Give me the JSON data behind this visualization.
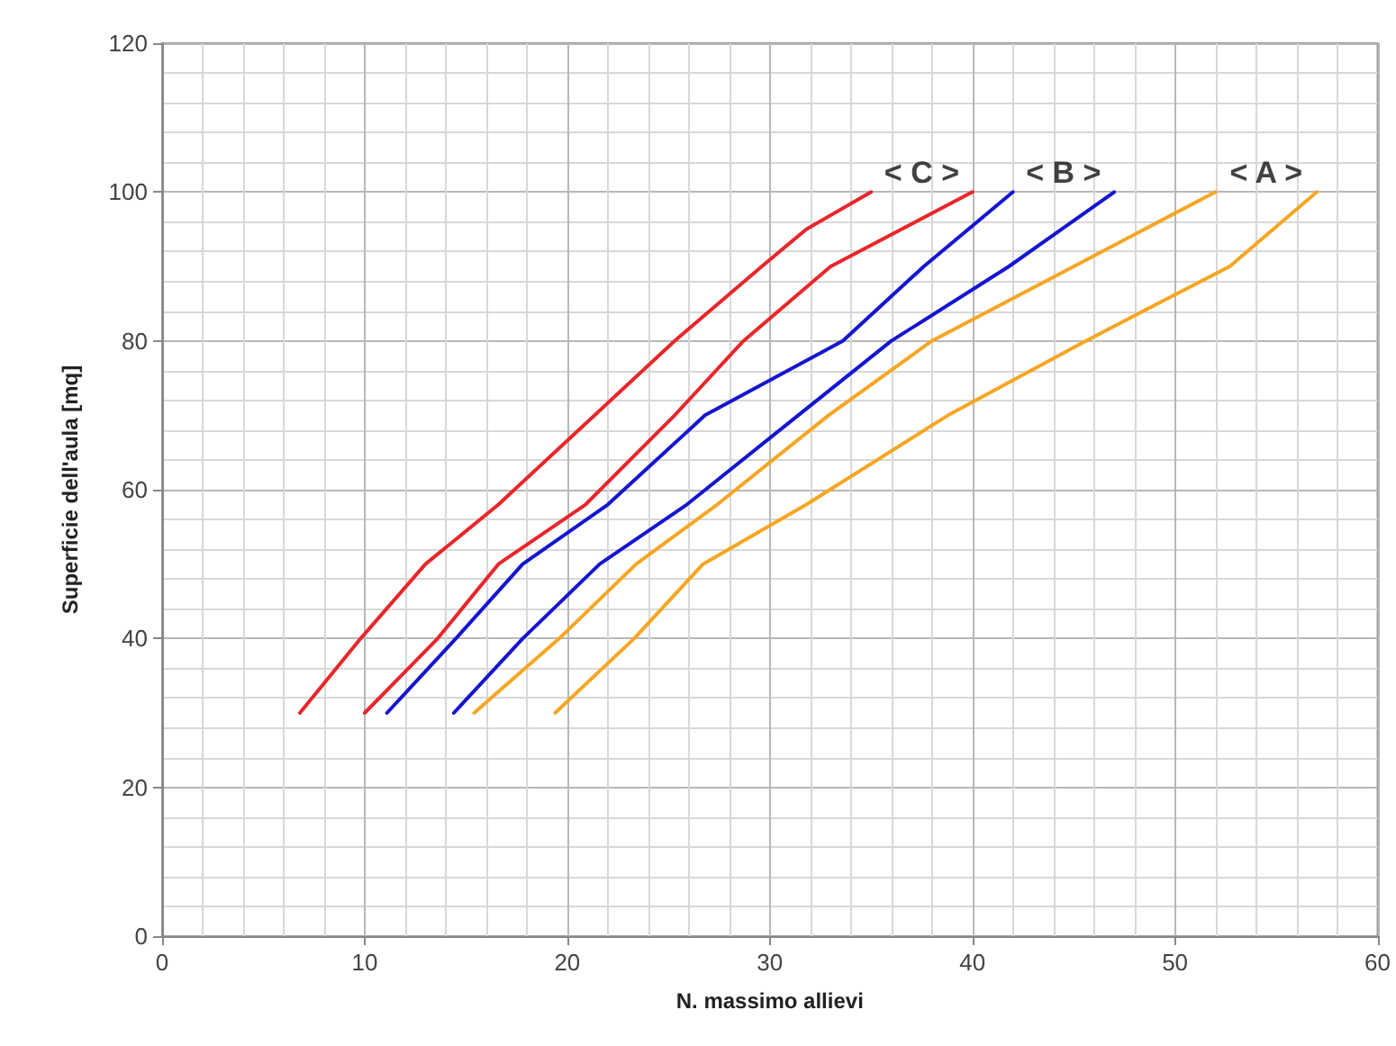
{
  "chart_data": {
    "type": "line",
    "xlabel": "N. massimo allievi",
    "ylabel": "Superficie dell'aula [mq]",
    "xlim": [
      0,
      60
    ],
    "xticks": [
      0,
      10,
      20,
      30,
      40,
      50,
      60
    ],
    "ylim": [
      0,
      120
    ],
    "yticks": [
      0,
      20,
      40,
      60,
      80,
      100,
      120
    ],
    "grid": true,
    "marker": "none",
    "line_style": "solid",
    "series": [
      {
        "color": "#e8262b",
        "x": [
          6.8,
          9.8,
          13,
          16.6,
          25.3,
          29.6,
          31.8,
          35
        ],
        "values": [
          30,
          40,
          50,
          58,
          80,
          90,
          95,
          100
        ]
      },
      {
        "color": "#e8262b",
        "x": [
          10,
          13.6,
          16.6,
          20.9,
          25.3,
          28.7,
          33,
          40
        ],
        "values": [
          30,
          40,
          50,
          58,
          70,
          80,
          90,
          100
        ]
      },
      {
        "color": "#1515d0",
        "x": [
          11.1,
          14.5,
          17.8,
          22,
          26.8,
          33.6,
          37.6,
          42
        ],
        "values": [
          30,
          40,
          50,
          58,
          70,
          80,
          90,
          100
        ]
      },
      {
        "color": "#1515d0",
        "x": [
          14.4,
          17.8,
          21.6,
          25.9,
          31.4,
          36,
          41.8,
          47
        ],
        "values": [
          30,
          40,
          50,
          58,
          70,
          80,
          90,
          100
        ]
      },
      {
        "color": "#f5a623",
        "x": [
          15.4,
          19.6,
          23.4,
          27.4,
          32.9,
          38,
          45,
          52
        ],
        "values": [
          30,
          40,
          50,
          58,
          70,
          80,
          90,
          100
        ]
      },
      {
        "color": "#f5a623",
        "x": [
          19.4,
          23.3,
          26.7,
          31.8,
          38.8,
          45.6,
          52.7,
          57
        ],
        "values": [
          30,
          40,
          50,
          58,
          70,
          80,
          90,
          100
        ]
      }
    ],
    "annotations": [
      "< C >",
      "< B >",
      "< A >"
    ]
  }
}
